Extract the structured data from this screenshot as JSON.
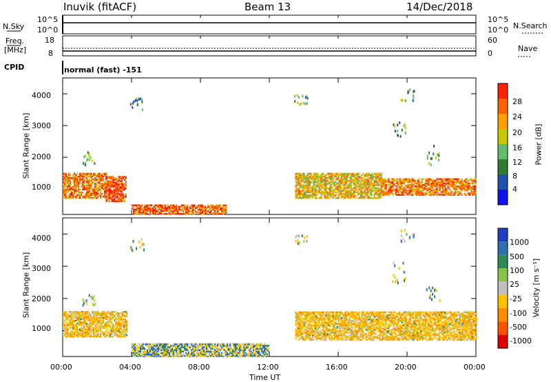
{
  "header": {
    "station": "Inuvik (fitACF)",
    "beam": "Beam 13",
    "date": "14/Dec/2018"
  },
  "top_panels": {
    "nsky_label": "N.Sky",
    "nsky_top_tick": "10^5",
    "nsky_bottom_tick": "10^0",
    "nsearch_label": "N.Search",
    "nsearch_top_tick": "10^5",
    "nsearch_bottom_tick": "10^0",
    "freq_label_line1": "Freq.",
    "freq_label_line2": "[MHz]",
    "freq_top_tick": "18",
    "freq_bottom_tick": "8",
    "nave_label": "Nave",
    "nave_top_tick": "60",
    "nave_bottom_tick": "0",
    "cpid_label": "CPID",
    "cpid_value": "normal (fast) -151"
  },
  "x_axis": {
    "ticks": [
      "00:00",
      "04:00",
      "08:00",
      "12:00",
      "16:00",
      "20:00",
      "00:00"
    ],
    "label": "Time UT"
  },
  "y_axis": {
    "label": "Slant Range [km]",
    "ticks": [
      "1000",
      "2000",
      "3000",
      "4000"
    ]
  },
  "colorbars": {
    "power": {
      "label": "Power [dB]",
      "ticks": [
        "4",
        "8",
        "12",
        "16",
        "20",
        "24",
        "28"
      ],
      "colors": [
        "#1010f0",
        "#2050b0",
        "#2e7d32",
        "#66bb6a",
        "#c8c800",
        "#ffa000",
        "#ff6000",
        "#ff2000"
      ]
    },
    "velocity": {
      "label": "Velocity [m s⁻¹]",
      "ticks": [
        "1000",
        "500",
        "100",
        "25",
        "-25",
        "-100",
        "-500",
        "-1000"
      ],
      "colors": [
        "#1f3fbf",
        "#2f6fb0",
        "#2e8b57",
        "#8bc34a",
        "#c0c0c0",
        "#ffc000",
        "#ff8c00",
        "#ff5000",
        "#e00000"
      ]
    }
  },
  "chart_data": [
    {
      "type": "heatmap",
      "title": "Power",
      "xlabel": "Time UT",
      "ylabel": "Slant Range [km]",
      "xlim": [
        0,
        24
      ],
      "ylim": [
        200,
        4500
      ],
      "colorbar_label": "Power [dB]",
      "colorbar_range": [
        0,
        32
      ],
      "regions": [
        {
          "t": [
            0.0,
            2.5
          ],
          "range": [
            700,
            1500
          ],
          "value": 24
        },
        {
          "t": [
            2.5,
            3.7
          ],
          "range": [
            600,
            1400
          ],
          "value": 28
        },
        {
          "t": [
            4.0,
            9.5
          ],
          "range": [
            200,
            500
          ],
          "value": 26
        },
        {
          "t": [
            13.5,
            18.5
          ],
          "range": [
            700,
            1500
          ],
          "value": 20
        },
        {
          "t": [
            18.5,
            24.0
          ],
          "range": [
            800,
            1300
          ],
          "value": 24
        }
      ]
    },
    {
      "type": "heatmap",
      "title": "Velocity",
      "xlabel": "Time UT",
      "ylabel": "Slant Range [km]",
      "xlim": [
        0,
        24
      ],
      "ylim": [
        200,
        4500
      ],
      "colorbar_label": "Velocity [m s⁻¹]",
      "colorbar_range": [
        -1000,
        1000
      ],
      "regions": [
        {
          "t": [
            0.0,
            3.7
          ],
          "range": [
            800,
            1600
          ],
          "value": -300
        },
        {
          "t": [
            4.0,
            12.0
          ],
          "range": [
            200,
            600
          ],
          "value": 0
        },
        {
          "t": [
            13.5,
            24.0
          ],
          "range": [
            700,
            1600
          ],
          "value": -300
        }
      ]
    }
  ]
}
